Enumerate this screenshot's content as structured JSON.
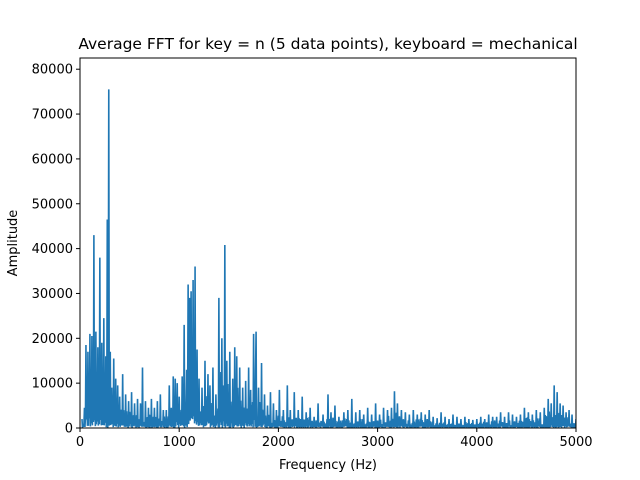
{
  "chart_data": {
    "type": "line",
    "title": "Average FFT for key = n (5 data points), keyboard = mechanical",
    "xlabel": "Frequency (Hz)",
    "ylabel": "Amplitude",
    "xlim": [
      0,
      5000
    ],
    "ylim": [
      0,
      82500
    ],
    "xticks": [
      0,
      1000,
      2000,
      3000,
      4000,
      5000
    ],
    "yticks": [
      0,
      10000,
      20000,
      30000,
      40000,
      50000,
      60000,
      70000,
      80000
    ],
    "grid": false,
    "line_color": "#1f77b4",
    "series": [
      {
        "peaks": [
          [
            20,
            2000
          ],
          [
            45,
            4500
          ],
          [
            60,
            18500
          ],
          [
            80,
            17000
          ],
          [
            100,
            21000
          ],
          [
            120,
            20500
          ],
          [
            140,
            43000
          ],
          [
            160,
            21500
          ],
          [
            180,
            18000
          ],
          [
            200,
            38000
          ],
          [
            220,
            19000
          ],
          [
            240,
            24500
          ],
          [
            260,
            16000
          ],
          [
            275,
            46500
          ],
          [
            290,
            75500
          ],
          [
            305,
            17000
          ],
          [
            320,
            9000
          ],
          [
            340,
            15500
          ],
          [
            360,
            11000
          ],
          [
            380,
            9500
          ],
          [
            400,
            7000
          ],
          [
            430,
            12000
          ],
          [
            460,
            7500
          ],
          [
            490,
            6000
          ],
          [
            520,
            8000
          ],
          [
            550,
            5500
          ],
          [
            580,
            6500
          ],
          [
            610,
            5500
          ],
          [
            630,
            13500
          ],
          [
            660,
            6000
          ],
          [
            690,
            4500
          ],
          [
            720,
            6500
          ],
          [
            750,
            4500
          ],
          [
            780,
            6000
          ],
          [
            810,
            7500
          ],
          [
            840,
            4000
          ],
          [
            870,
            4000
          ],
          [
            900,
            9500
          ],
          [
            920,
            4500
          ],
          [
            940,
            11500
          ],
          [
            960,
            11000
          ],
          [
            980,
            10000
          ],
          [
            1000,
            7000
          ],
          [
            1030,
            11500
          ],
          [
            1050,
            23000
          ],
          [
            1075,
            13000
          ],
          [
            1090,
            32000
          ],
          [
            1105,
            29000
          ],
          [
            1120,
            30500
          ],
          [
            1140,
            33000
          ],
          [
            1160,
            36000
          ],
          [
            1180,
            17500
          ],
          [
            1200,
            11000
          ],
          [
            1230,
            9000
          ],
          [
            1260,
            15000
          ],
          [
            1290,
            12000
          ],
          [
            1310,
            9500
          ],
          [
            1340,
            13500
          ],
          [
            1370,
            7500
          ],
          [
            1400,
            29000
          ],
          [
            1430,
            20000
          ],
          [
            1460,
            40800
          ],
          [
            1480,
            15000
          ],
          [
            1510,
            17000
          ],
          [
            1540,
            11000
          ],
          [
            1560,
            18000
          ],
          [
            1580,
            16000
          ],
          [
            1610,
            13500
          ],
          [
            1640,
            9000
          ],
          [
            1670,
            10500
          ],
          [
            1700,
            13500
          ],
          [
            1720,
            8500
          ],
          [
            1750,
            21000
          ],
          [
            1775,
            21500
          ],
          [
            1800,
            9000
          ],
          [
            1830,
            14500
          ],
          [
            1860,
            7500
          ],
          [
            1890,
            5000
          ],
          [
            1920,
            8000
          ],
          [
            1950,
            5500
          ],
          [
            1980,
            4000
          ],
          [
            2010,
            8500
          ],
          [
            2050,
            4000
          ],
          [
            2090,
            9500
          ],
          [
            2120,
            4000
          ],
          [
            2160,
            8000
          ],
          [
            2200,
            4000
          ],
          [
            2240,
            7000
          ],
          [
            2280,
            3500
          ],
          [
            2320,
            4500
          ],
          [
            2360,
            2500
          ],
          [
            2400,
            5500
          ],
          [
            2450,
            3000
          ],
          [
            2500,
            7500
          ],
          [
            2530,
            3500
          ],
          [
            2570,
            5000
          ],
          [
            2610,
            2500
          ],
          [
            2660,
            3500
          ],
          [
            2700,
            4000
          ],
          [
            2740,
            6500
          ],
          [
            2780,
            3500
          ],
          [
            2820,
            4000
          ],
          [
            2860,
            3000
          ],
          [
            2900,
            4500
          ],
          [
            2940,
            3000
          ],
          [
            2980,
            5500
          ],
          [
            3020,
            3000
          ],
          [
            3060,
            4500
          ],
          [
            3100,
            4000
          ],
          [
            3140,
            4500
          ],
          [
            3170,
            8200
          ],
          [
            3200,
            5500
          ],
          [
            3240,
            4000
          ],
          [
            3280,
            3500
          ],
          [
            3320,
            3000
          ],
          [
            3360,
            4000
          ],
          [
            3400,
            3000
          ],
          [
            3440,
            3500
          ],
          [
            3480,
            3000
          ],
          [
            3520,
            4000
          ],
          [
            3560,
            2500
          ],
          [
            3600,
            2200
          ],
          [
            3640,
            3500
          ],
          [
            3680,
            2500
          ],
          [
            3720,
            2000
          ],
          [
            3760,
            3000
          ],
          [
            3800,
            2500
          ],
          [
            3840,
            2000
          ],
          [
            3880,
            2500
          ],
          [
            3920,
            2000
          ],
          [
            3960,
            1800
          ],
          [
            4000,
            2000
          ],
          [
            4040,
            2500
          ],
          [
            4080,
            2000
          ],
          [
            4120,
            3000
          ],
          [
            4160,
            2500
          ],
          [
            4200,
            2500
          ],
          [
            4240,
            3500
          ],
          [
            4280,
            2500
          ],
          [
            4320,
            3500
          ],
          [
            4360,
            3000
          ],
          [
            4400,
            2500
          ],
          [
            4440,
            3000
          ],
          [
            4480,
            4500
          ],
          [
            4520,
            3500
          ],
          [
            4560,
            3000
          ],
          [
            4600,
            4000
          ],
          [
            4640,
            3500
          ],
          [
            4680,
            4500
          ],
          [
            4720,
            6500
          ],
          [
            4750,
            5500
          ],
          [
            4780,
            9500
          ],
          [
            4810,
            8000
          ],
          [
            4840,
            5500
          ],
          [
            4870,
            5000
          ],
          [
            4900,
            3500
          ],
          [
            4930,
            4000
          ],
          [
            4960,
            3000
          ],
          [
            5000,
            2000
          ]
        ]
      }
    ]
  }
}
